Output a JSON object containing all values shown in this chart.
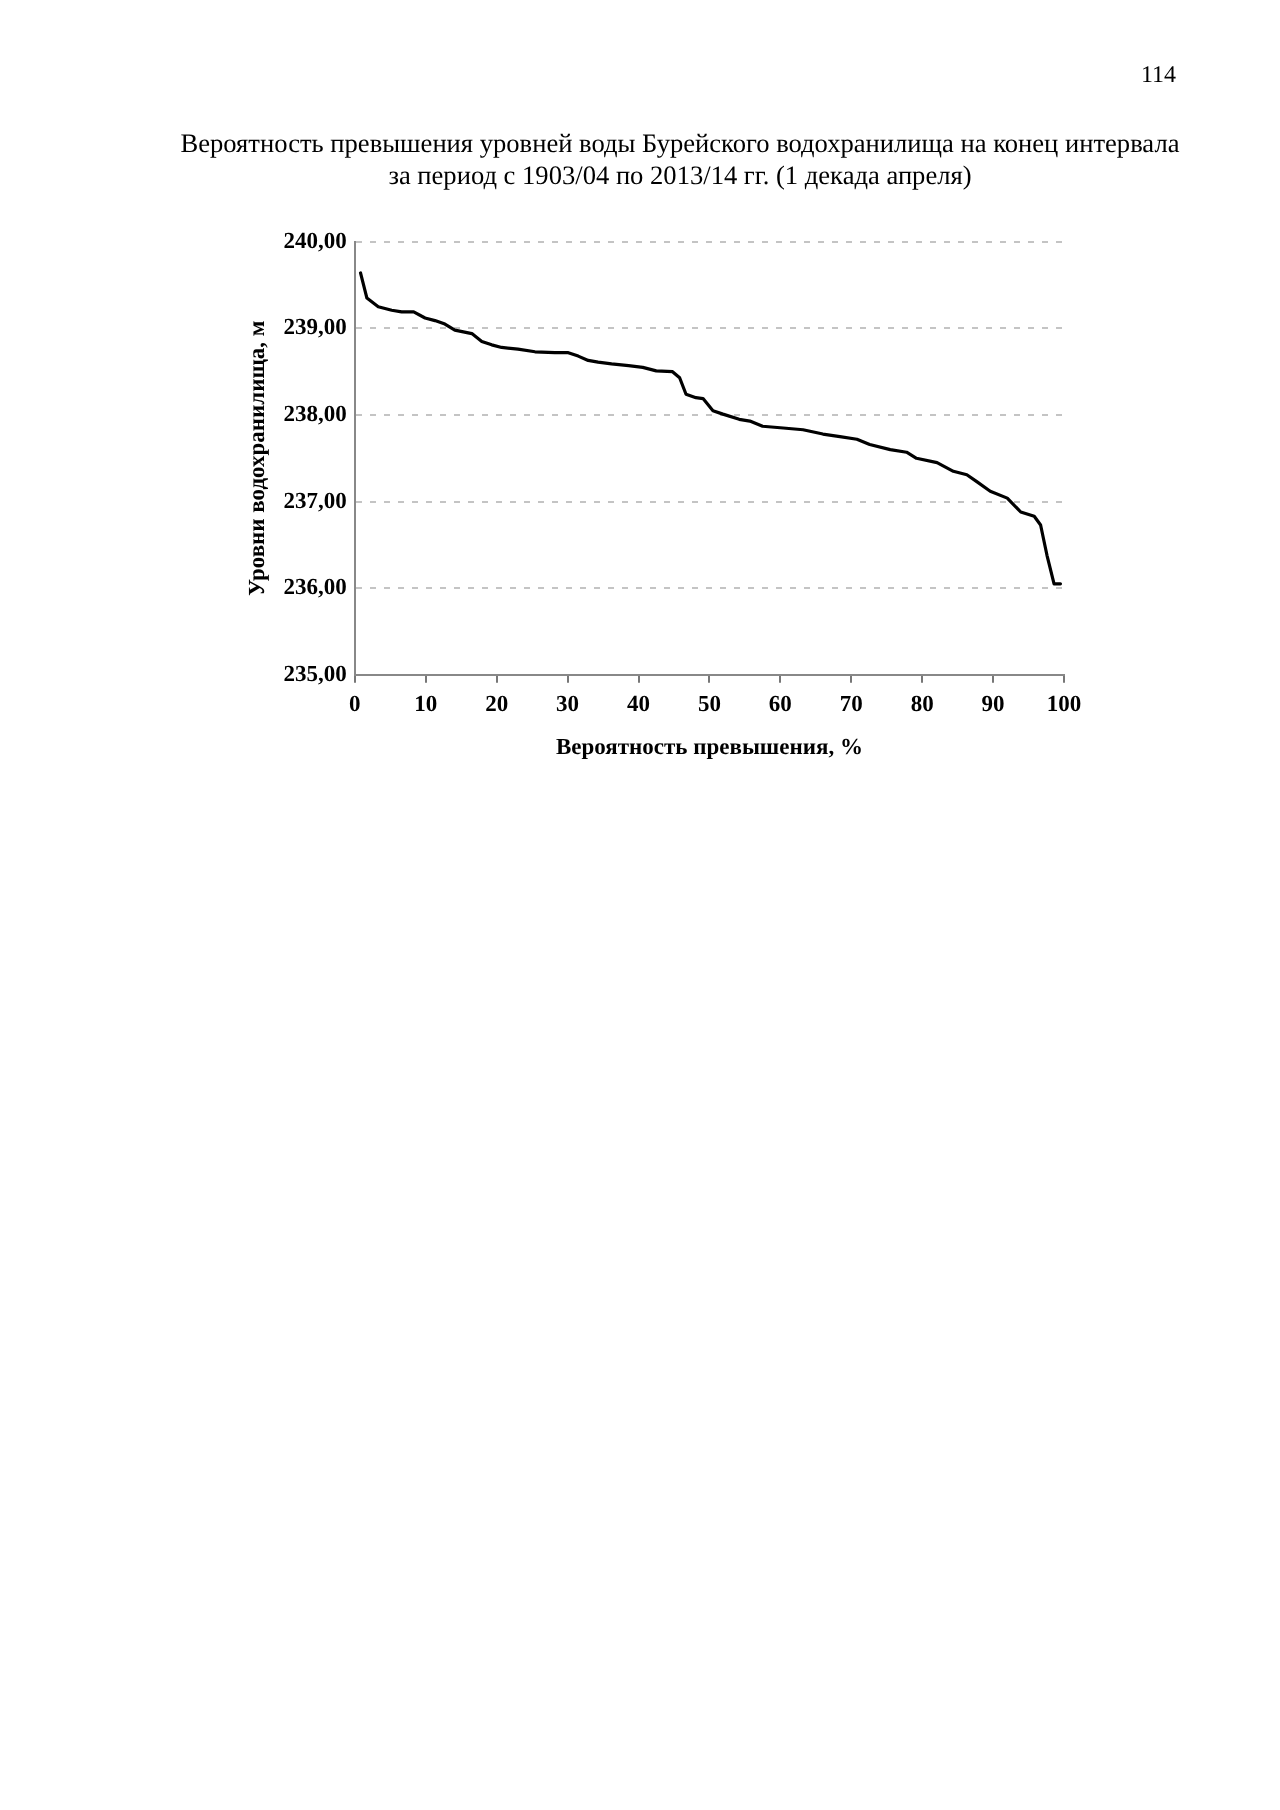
{
  "chart_data": {
    "type": "line",
    "title": "Вероятность превышения уровней воды Бурейского водохранилища на конец интервала за период с 1903/04 по 2013/14 гг. (1 декада апреля)",
    "xlabel": "Вероятность превышения, %",
    "ylabel": "Уровни водохранилища, м",
    "annotations": [
      "114"
    ],
    "x": [
      0.8,
      1.7,
      3.3,
      5.2,
      6.6,
      8.3,
      9.9,
      11.3,
      12.7,
      14.1,
      16.5,
      17.9,
      19.3,
      20.7,
      23.0,
      25.4,
      28.2,
      30.1,
      31.5,
      32.9,
      34.3,
      36.2,
      38.6,
      40.6,
      42.5,
      44.8,
      45.8,
      46.7,
      48.1,
      49.1,
      50.5,
      51.9,
      54.2,
      55.7,
      57.5,
      60.4,
      63.2,
      66.0,
      68.4,
      70.8,
      72.6,
      75.5,
      77.8,
      79.2,
      82.1,
      84.4,
      86.3,
      87.7,
      89.6,
      92.0,
      93.9,
      95.8,
      96.7,
      97.6,
      98.6,
      99.5
    ],
    "values": [
      239.64,
      239.35,
      239.25,
      239.21,
      239.19,
      239.19,
      239.12,
      239.09,
      239.05,
      238.98,
      238.94,
      238.85,
      238.81,
      238.78,
      238.76,
      238.73,
      238.72,
      238.72,
      238.68,
      238.63,
      238.61,
      238.59,
      238.57,
      238.55,
      238.51,
      238.5,
      238.43,
      238.24,
      238.2,
      238.19,
      238.05,
      238.01,
      237.95,
      237.93,
      237.87,
      237.85,
      237.83,
      237.78,
      237.75,
      237.72,
      237.66,
      237.6,
      237.57,
      237.5,
      237.45,
      237.35,
      237.31,
      237.23,
      237.12,
      237.04,
      236.88,
      236.83,
      236.73,
      236.38,
      236.05,
      236.05
    ],
    "color": "#000000",
    "marker": "none",
    "line_style": "solid",
    "grid": "y",
    "xlim": [
      0,
      100
    ],
    "xticks": [
      0,
      10,
      20,
      30,
      40,
      50,
      60,
      70,
      80,
      90,
      100
    ],
    "ylim": [
      235,
      240
    ],
    "yticks": [
      {
        "value": 235,
        "label": "235,00"
      },
      {
        "value": 236,
        "label": "236,00"
      },
      {
        "value": 237,
        "label": "237,00"
      },
      {
        "value": 238,
        "label": "238,00"
      },
      {
        "value": 239,
        "label": "239,00"
      },
      {
        "value": 240,
        "label": "240,00"
      }
    ]
  }
}
